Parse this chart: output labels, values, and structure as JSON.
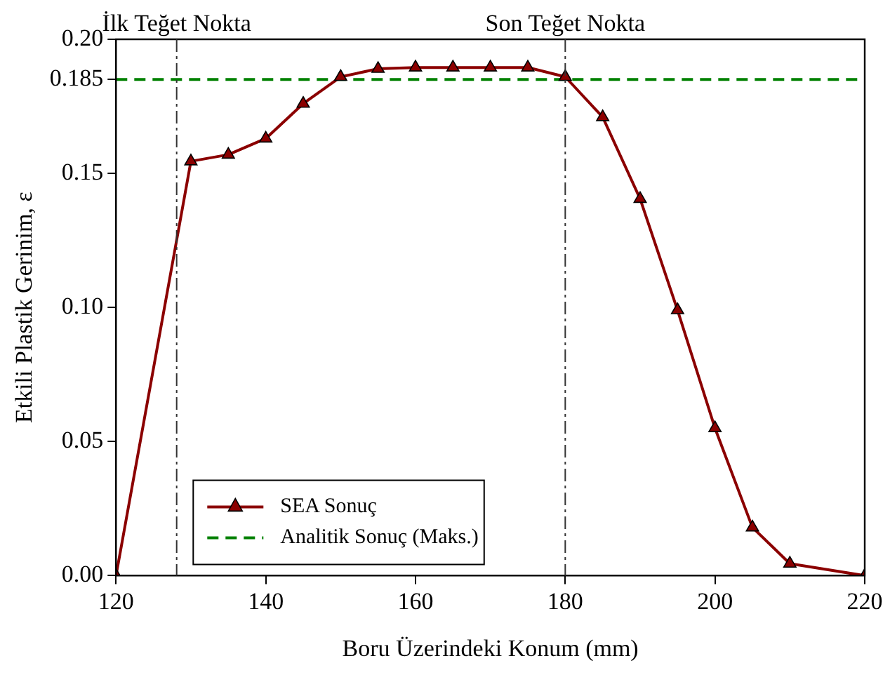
{
  "chart_data": {
    "type": "line",
    "xlabel": "Boru Üzerindeki Konum (mm)",
    "ylabel": "Etkili Plastik Gerinim, ε",
    "series": [
      {
        "name": "SEA Sonuç",
        "color": "#8b0000",
        "marker": "triangle",
        "line_style": "solid",
        "x": [
          120,
          130,
          135,
          140,
          145,
          150,
          155,
          160,
          165,
          170,
          175,
          180,
          185,
          190,
          195,
          200,
          205,
          210,
          220
        ],
        "values": [
          0,
          0.1545,
          0.157,
          0.163,
          0.176,
          0.186,
          0.189,
          0.1895,
          0.1895,
          0.1895,
          0.1895,
          0.186,
          0.171,
          0.1405,
          0.099,
          0.055,
          0.018,
          0.0045,
          0
        ]
      },
      {
        "name": "Analitik Sonuç (Maks.)",
        "color": "#008000",
        "marker": "none",
        "line_style": "dashed",
        "x": [
          120,
          220
        ],
        "values": [
          0.185,
          0.185
        ]
      }
    ],
    "xlim": [
      120,
      220
    ],
    "xticks": [
      120,
      140,
      160,
      180,
      200,
      220
    ],
    "ylim": [
      0,
      0.2
    ],
    "yticks": [
      {
        "value": 0,
        "label": "0.00"
      },
      {
        "value": 0.05,
        "label": "0.05"
      },
      {
        "value": 0.1,
        "label": "0.10"
      },
      {
        "value": 0.15,
        "label": "0.15"
      },
      0.185,
      {
        "value": 0.2,
        "label": "0.20"
      }
    ],
    "ref_lines": [
      {
        "axis": "x",
        "value": 128.1,
        "label": "İlk Teğet Nokta",
        "color": "#333333"
      },
      {
        "axis": "x",
        "value": 180,
        "label": "Son Teğet Nokta",
        "color": "#333333"
      }
    ],
    "grid": false,
    "legend": "bottom left"
  }
}
